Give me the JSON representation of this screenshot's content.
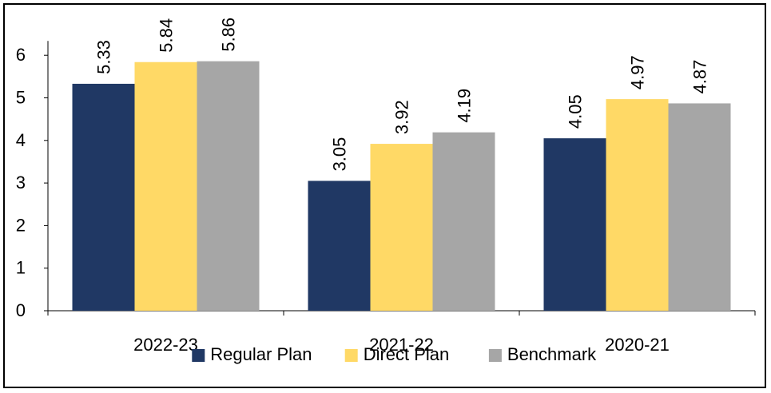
{
  "chart_data": {
    "type": "bar",
    "title": "",
    "xlabel": "",
    "ylabel": "",
    "categories": [
      "2022-23",
      "2021-22",
      "2020-21"
    ],
    "series": [
      {
        "name": "Regular Plan",
        "values": [
          5.33,
          3.05,
          4.05
        ],
        "color": "#203864"
      },
      {
        "name": "Direct Plan",
        "values": [
          5.84,
          3.92,
          4.97
        ],
        "color": "#FFD966"
      },
      {
        "name": "Benchmark",
        "values": [
          5.86,
          4.19,
          4.87
        ],
        "color": "#A6A6A6"
      }
    ],
    "ylim": [
      0,
      6
    ],
    "yticks": [
      0,
      1,
      2,
      3,
      4,
      5,
      6
    ],
    "grid": false,
    "data_labels": true,
    "data_label_orientation": "vertical",
    "legend_position": "bottom"
  }
}
